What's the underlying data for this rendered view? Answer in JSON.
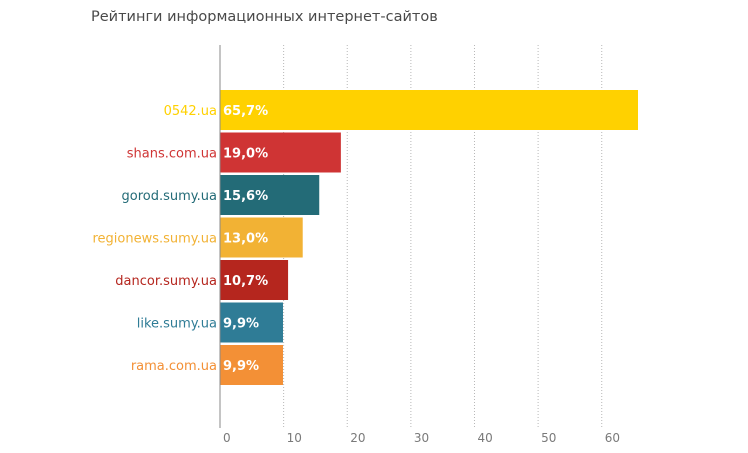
{
  "chart_data": {
    "type": "bar",
    "orientation": "horizontal",
    "title": "Рейтинги информационных интернет-сайтов",
    "categories": [
      "0542.ua",
      "shans.com.ua",
      "gorod.sumy.ua",
      "regionews.sumy.ua",
      "dancor.sumy.ua",
      "like.sumy.ua",
      "rama.com.ua"
    ],
    "values": [
      65.7,
      19.0,
      15.6,
      13.0,
      10.7,
      9.9,
      9.9
    ],
    "value_labels": [
      "65,7%",
      "19,0%",
      "15,6%",
      "13,0%",
      "10,7%",
      "9,9%",
      "9,9%"
    ],
    "colors": [
      "#ffd100",
      "#cf3434",
      "#236b77",
      "#f2b234",
      "#b5261e",
      "#2f7c96",
      "#f39036"
    ],
    "xlim": [
      0,
      65.7
    ],
    "xticks": [
      0,
      10,
      20,
      30,
      40,
      50,
      60
    ],
    "xtick_labels": [
      "0",
      "10",
      "20",
      "30",
      "40",
      "50",
      "60"
    ],
    "grid": "vertical dotted",
    "legend": "none"
  }
}
